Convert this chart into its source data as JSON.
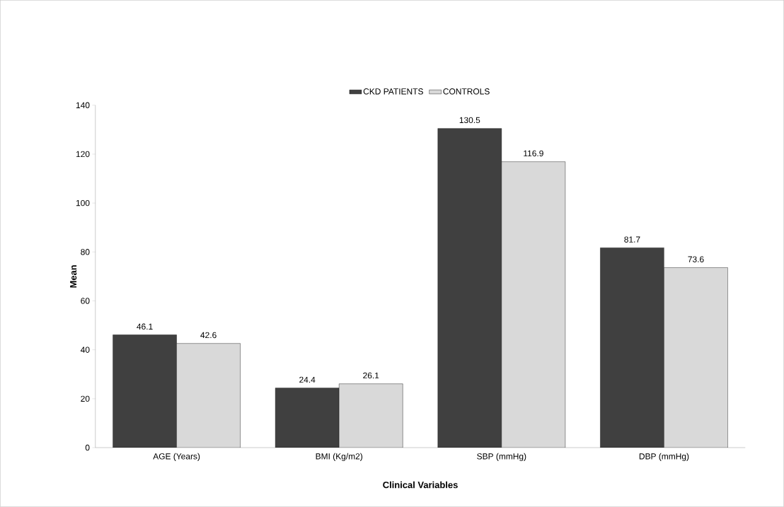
{
  "chart_data": {
    "type": "bar",
    "xlabel": "Clinical Variables",
    "ylabel": "Mean",
    "categories": [
      "AGE (Years)",
      "BMI (Kg/m2)",
      "SBP (mmHg)",
      "DBP (mmHg)"
    ],
    "series": [
      {
        "name": "CKD PATIENTS",
        "color": "#404040",
        "values": [
          46.1,
          24.4,
          130.5,
          81.7
        ]
      },
      {
        "name": "CONTROLS",
        "color": "#d9d9d9",
        "values": [
          42.6,
          26.1,
          116.9,
          73.6
        ]
      }
    ],
    "ylim": [
      0,
      140
    ],
    "yticks": [
      0,
      20,
      40,
      60,
      80,
      100,
      120,
      140
    ],
    "data_labels": true,
    "legend": "top"
  }
}
